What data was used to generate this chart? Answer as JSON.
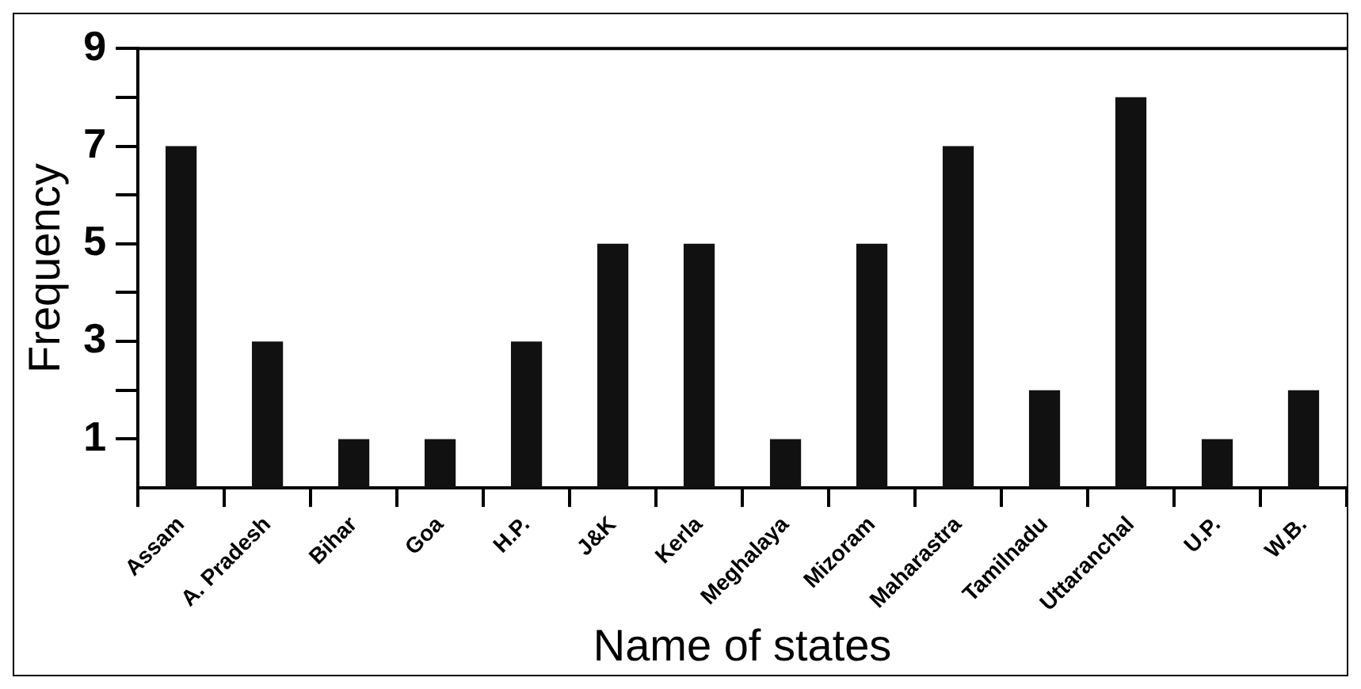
{
  "chart_data": {
    "type": "bar",
    "xlabel": "Name of states",
    "ylabel": "Frequency",
    "categories": [
      "Assam",
      "A. Pradesh",
      "Bihar",
      "Goa",
      "H.P.",
      "J&K",
      "Kerla",
      "Meghalaya",
      "Mizoram",
      "Maharastra",
      "Tamilnadu",
      "Uttaranchal",
      "U.P.",
      "W.B."
    ],
    "values": [
      7,
      3,
      1,
      1,
      3,
      5,
      5,
      1,
      5,
      7,
      2,
      8,
      1,
      2
    ],
    "color": "#111111",
    "ylim": [
      0,
      9
    ],
    "yticks": [
      1,
      {
        "value": 2,
        "label": null
      },
      3,
      {
        "value": 4,
        "label": null
      },
      5,
      {
        "value": 6,
        "label": null
      },
      7,
      {
        "value": 8,
        "label": null
      },
      9
    ],
    "grid": false,
    "legend": false
  }
}
